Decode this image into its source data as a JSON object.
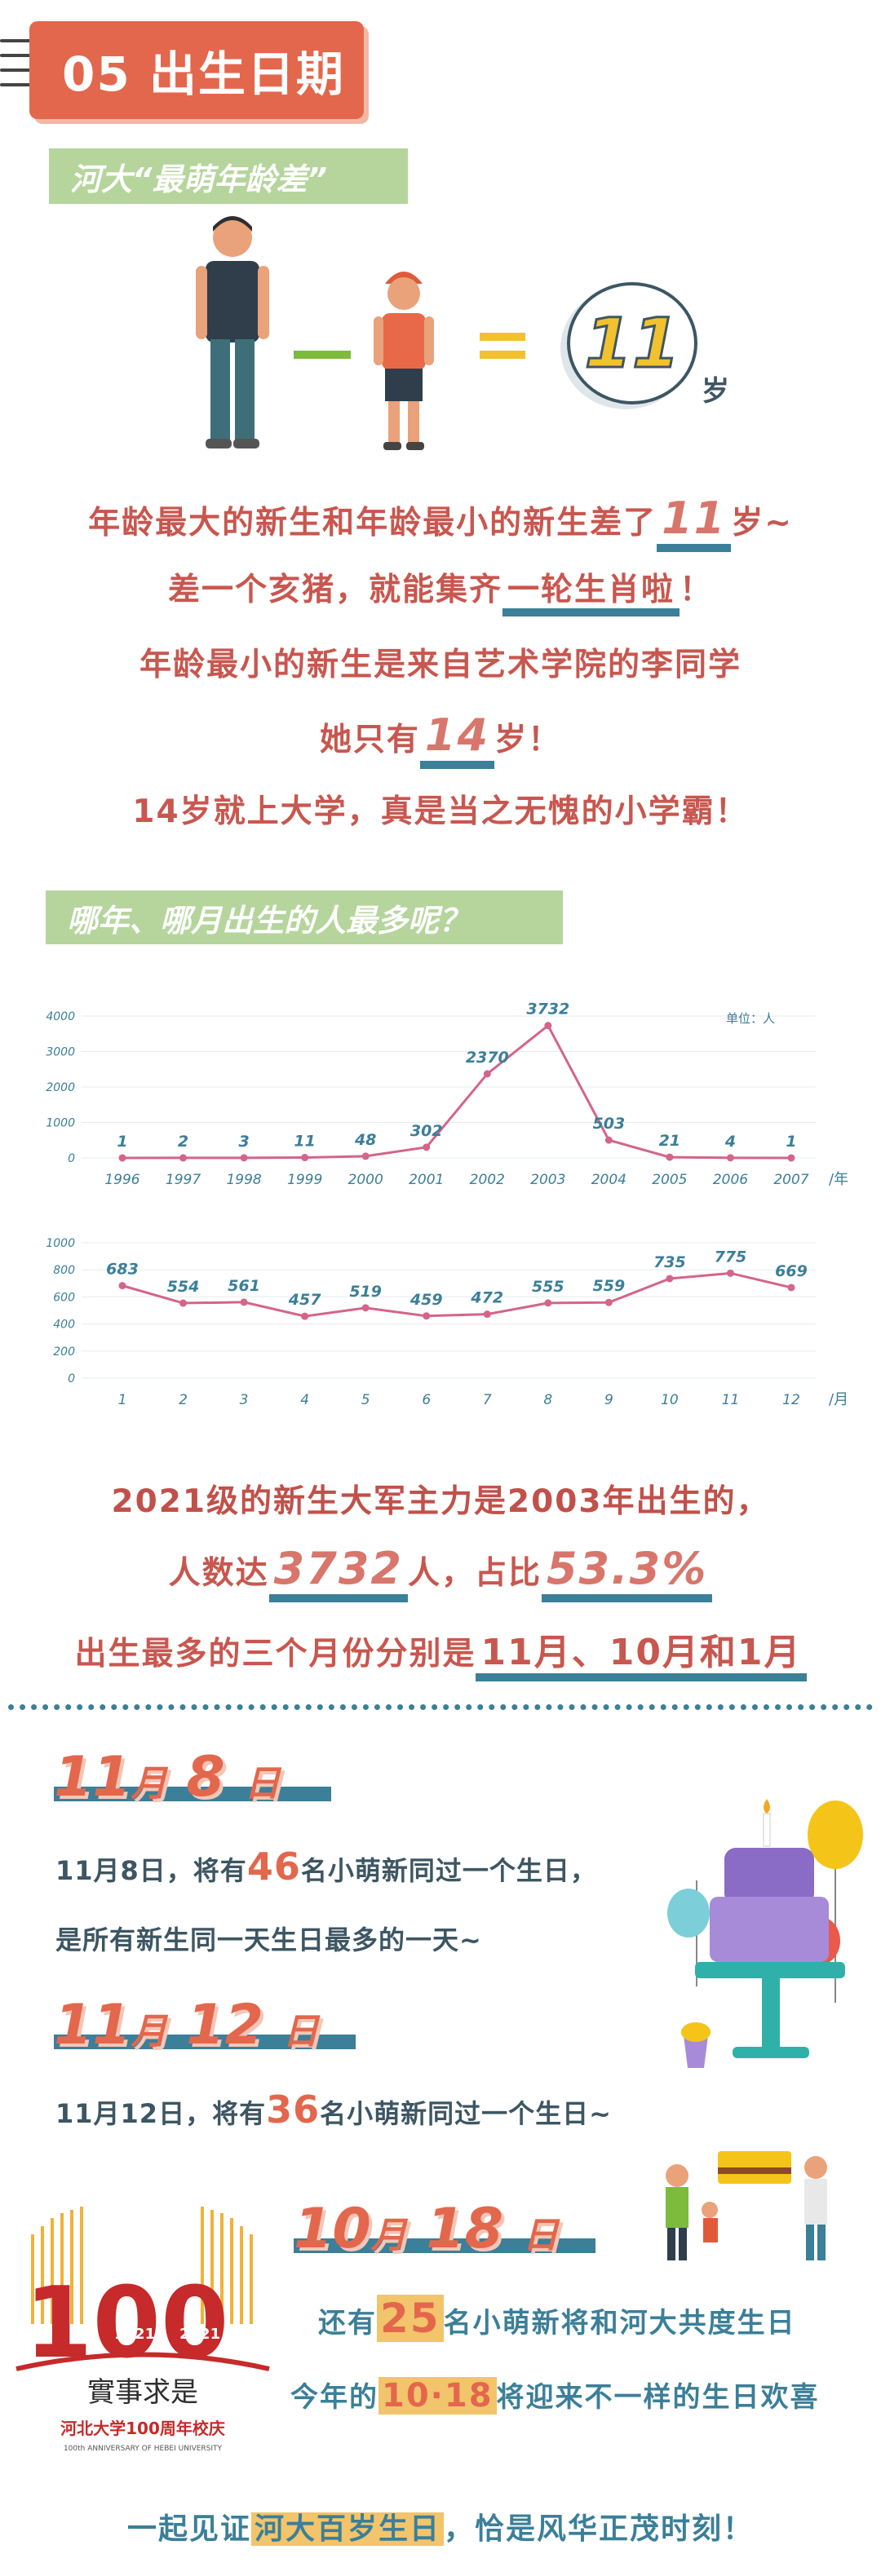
{
  "header": {
    "title": "05 出生日期"
  },
  "section1": {
    "tag": "河大“最萌年龄差”",
    "equation": {
      "minus": "—",
      "equals": "=",
      "result": "11",
      "unit": "岁"
    },
    "lines": {
      "l1_pre": "年龄最大的新生和年龄最小的新生差了",
      "l1_num": "11",
      "l1_post": "岁~",
      "l2_pre": "差一个亥猪，就能集齐",
      "l2_ul": "一轮生肖啦",
      "l2_post": "！",
      "l3": "年龄最小的新生是来自艺术学院的李同学",
      "l4_pre": "她只有",
      "l4_num": "14",
      "l4_post": "岁！",
      "l5": "14岁就上大学，真是当之无愧的小学霸！"
    }
  },
  "section2": {
    "tag": "哪年、哪月出生的人最多呢？",
    "unit_label": "单位：人",
    "year_axis_suffix": "/年",
    "month_axis_suffix": "/月"
  },
  "chart_data": [
    {
      "type": "line",
      "categories": [
        "1996",
        "1997",
        "1998",
        "1999",
        "2000",
        "2001",
        "2002",
        "2003",
        "2004",
        "2005",
        "2006",
        "2007"
      ],
      "series": [
        {
          "values": [
            1,
            2,
            3,
            11,
            48,
            302,
            2370,
            3732,
            503,
            21,
            4,
            1
          ]
        }
      ],
      "yticks": [
        0,
        1000,
        2000,
        3000,
        4000
      ],
      "ylim": [
        0,
        4000
      ],
      "color": "#d4648a"
    },
    {
      "type": "line",
      "categories": [
        "1",
        "2",
        "3",
        "4",
        "5",
        "6",
        "7",
        "8",
        "9",
        "10",
        "11",
        "12"
      ],
      "series": [
        {
          "values": [
            683,
            554,
            561,
            457,
            519,
            459,
            472,
            555,
            559,
            735,
            775,
            669
          ]
        }
      ],
      "yticks": [
        0,
        200,
        400,
        600,
        800,
        1000
      ],
      "ylim": [
        0,
        1000
      ],
      "color": "#d4648a"
    }
  ],
  "section3": {
    "l1": "2021级的新生大军主力是2003年出生的，",
    "l2_pre": "人数达",
    "l2_num": "3732",
    "l2_mid": "人，占比",
    "l2_pct": "53.3%",
    "l3_pre": "出生最多的三个月份分别是",
    "l3_hl": "11月、10月和1月"
  },
  "section4": {
    "d1_month": "11",
    "d1_m": "月",
    "d1_day": "8",
    "d1_d": "日",
    "d1_l1_pre": "11月8日，将有",
    "d1_l1_num": "46",
    "d1_l1_post": "名小萌新同过一个生日，",
    "d1_l2": "是所有新生同一天生日最多的一天~",
    "d2_month": "11",
    "d2_m": "月",
    "d2_day": "12",
    "d2_d": "日",
    "d2_l1_pre": "11月12日，将有",
    "d2_l1_num": "36",
    "d2_l1_post": "名小萌新同过一个生日~",
    "d3_month": "10",
    "d3_m": "月",
    "d3_day": "18",
    "d3_d": "日",
    "d3_l1_pre": "还有",
    "d3_l1_num": "25",
    "d3_l1_post": "名小萌新将和河大共度生日",
    "d3_l2_pre": "今年的",
    "d3_l2_hl": "10·18",
    "d3_l2_post": "将迎来不一样的生日欢喜",
    "final_pre": "一起见证",
    "final_hl": "河大百岁生日",
    "final_post": "，恰是风华正茂时刻！"
  },
  "logo": {
    "years_left": "1921",
    "years_right": "2021",
    "motto": "實事求是",
    "name": "河北大学100周年校庆",
    "en": "100th ANNIVERSARY OF HEBEI UNIVERSITY"
  }
}
